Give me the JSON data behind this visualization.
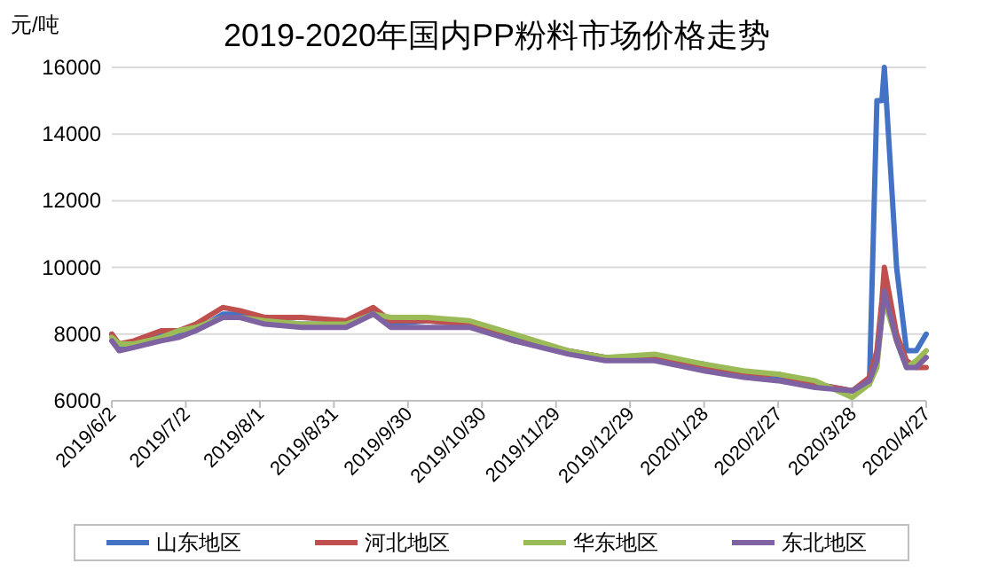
{
  "chart_data": {
    "type": "line",
    "title": "2019-2020年国内PP粉料市场价格走势",
    "ylabel": "元/吨",
    "x": [
      "2019-06-02",
      "2019-06-05",
      "2019-06-11",
      "2019-06-22",
      "2019-06-29",
      "2019-07-06",
      "2019-07-17",
      "2019-07-24",
      "2019-08-03",
      "2019-08-18",
      "2019-09-05",
      "2019-09-16",
      "2019-09-23",
      "2019-10-08",
      "2019-10-25",
      "2019-11-12",
      "2019-12-04",
      "2019-12-19",
      "2020-01-08",
      "2020-01-28",
      "2020-02-13",
      "2020-02-27",
      "2020-03-13",
      "2020-03-28",
      "2020-04-04",
      "2020-04-07",
      "2020-04-09",
      "2020-04-10",
      "2020-04-15",
      "2020-04-19",
      "2020-04-23",
      "2020-04-27"
    ],
    "series": [
      {
        "name": "山东地区",
        "color": "#4472c4",
        "values": [
          8000,
          7600,
          7700,
          8000,
          8000,
          8100,
          8600,
          8600,
          8400,
          8300,
          8300,
          8700,
          8300,
          8400,
          8300,
          7900,
          7500,
          7300,
          7300,
          7100,
          6800,
          6700,
          6500,
          6300,
          6500,
          15000,
          15000,
          16000,
          10000,
          7500,
          7500,
          8000
        ]
      },
      {
        "name": "河北地区",
        "color": "#c0504d",
        "values": [
          8000,
          7700,
          7800,
          8100,
          8100,
          8300,
          8800,
          8700,
          8500,
          8500,
          8400,
          8800,
          8400,
          8400,
          8300,
          7800,
          7500,
          7300,
          7300,
          7000,
          6800,
          6800,
          6500,
          6300,
          6700,
          7500,
          9000,
          10000,
          8000,
          7200,
          7000,
          7000
        ]
      },
      {
        "name": "华东地区",
        "color": "#9bbb59",
        "values": [
          7900,
          7700,
          7700,
          7900,
          8100,
          8200,
          8500,
          8500,
          8400,
          8300,
          8300,
          8600,
          8500,
          8500,
          8400,
          8000,
          7500,
          7300,
          7400,
          7100,
          6900,
          6800,
          6600,
          6100,
          6500,
          7000,
          8500,
          9000,
          7800,
          7000,
          7200,
          7500
        ]
      },
      {
        "name": "东北地区",
        "color": "#7f62a1",
        "values": [
          7800,
          7500,
          7600,
          7800,
          7900,
          8100,
          8500,
          8500,
          8300,
          8200,
          8200,
          8600,
          8200,
          8200,
          8200,
          7800,
          7400,
          7200,
          7200,
          6900,
          6700,
          6600,
          6400,
          6300,
          6600,
          7200,
          8500,
          9300,
          7800,
          7000,
          7000,
          7300
        ]
      }
    ],
    "ylim": [
      6000,
      16000
    ],
    "yticks": [
      6000,
      8000,
      10000,
      12000,
      14000,
      16000
    ],
    "xlim": [
      "2019-06-02",
      "2020-04-27"
    ],
    "xticks": [
      {
        "value": "2019-06-02",
        "label": "2019/6/2"
      },
      {
        "value": "2019-07-02",
        "label": "2019/7/2"
      },
      {
        "value": "2019-08-01",
        "label": "2019/8/1"
      },
      {
        "value": "2019-08-31",
        "label": "2019/8/31"
      },
      {
        "value": "2019-09-30",
        "label": "2019/9/30"
      },
      {
        "value": "2019-10-30",
        "label": "2019/10/30"
      },
      {
        "value": "2019-11-29",
        "label": "2019/11/29"
      },
      {
        "value": "2019-12-29",
        "label": "2019/12/29"
      },
      {
        "value": "2020-01-28",
        "label": "2020/1/28"
      },
      {
        "value": "2020-02-27",
        "label": "2020/2/27"
      },
      {
        "value": "2020-03-28",
        "label": "2020/3/28"
      },
      {
        "value": "2020-04-27",
        "label": "2020/4/27"
      }
    ],
    "grid": "y",
    "legend": "bottom",
    "line_style": "solid"
  }
}
